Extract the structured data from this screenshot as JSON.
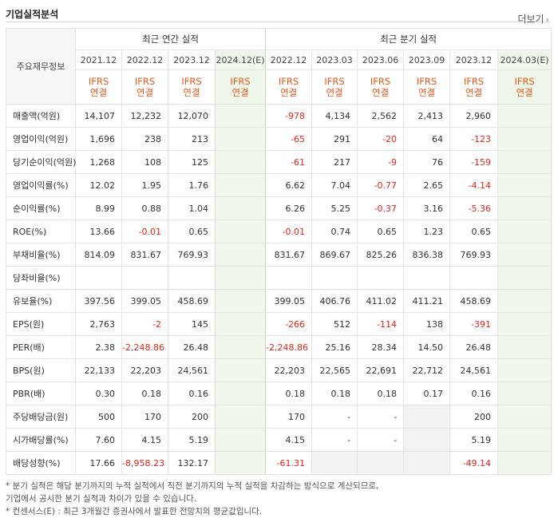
{
  "header": {
    "title": "기업실적분석",
    "more_label": "더보기"
  },
  "table": {
    "label_header": "주요재무정보",
    "annual_header": "최근 연간 실적",
    "quarter_header": "최근 분기 실적",
    "annual_dates": [
      "2021.12",
      "2022.12",
      "2023.12",
      "2024.12(E)"
    ],
    "quarter_dates": [
      "2022.12",
      "2023.03",
      "2023.06",
      "2023.09",
      "2023.12",
      "2024.03(E)"
    ],
    "ifrs_line1": "IFRS",
    "ifrs_line2": "연결",
    "rows": [
      {
        "label": "매출액(억원)",
        "values": [
          "14,107",
          "12,232",
          "12,070",
          "",
          "-978",
          "4,134",
          "2,562",
          "2,413",
          "2,960",
          ""
        ]
      },
      {
        "label": "영업이익(억원)",
        "values": [
          "1,696",
          "238",
          "213",
          "",
          "-65",
          "291",
          "-20",
          "64",
          "-123",
          ""
        ]
      },
      {
        "label": "당기순이익(억원)",
        "values": [
          "1,268",
          "108",
          "125",
          "",
          "-61",
          "217",
          "-9",
          "76",
          "-159",
          ""
        ]
      },
      {
        "label": "영업이익률(%)",
        "values": [
          "12.02",
          "1.95",
          "1.76",
          "",
          "6.62",
          "7.04",
          "-0.77",
          "2.65",
          "-4.14",
          ""
        ]
      },
      {
        "label": "순이익률(%)",
        "values": [
          "8.99",
          "0.88",
          "1.04",
          "",
          "6.26",
          "5.25",
          "-0.37",
          "3.16",
          "-5.36",
          ""
        ]
      },
      {
        "label": "ROE(%)",
        "values": [
          "13.66",
          "-0.01",
          "0.65",
          "",
          "-0.01",
          "0.74",
          "0.65",
          "1.23",
          "0.65",
          ""
        ]
      },
      {
        "label": "부채비율(%)",
        "values": [
          "814.09",
          "831.67",
          "769.93",
          "",
          "831.67",
          "869.67",
          "825.26",
          "836.38",
          "769.93",
          ""
        ]
      },
      {
        "label": "당좌비율(%)",
        "values": [
          "",
          "",
          "",
          "",
          "",
          "",
          "",
          "",
          "",
          ""
        ]
      },
      {
        "label": "유보율(%)",
        "values": [
          "397.56",
          "399.05",
          "458.69",
          "",
          "399.05",
          "406.76",
          "411.02",
          "411.21",
          "458.69",
          ""
        ]
      },
      {
        "label": "EPS(원)",
        "values": [
          "2,763",
          "-2",
          "145",
          "",
          "-266",
          "512",
          "-114",
          "138",
          "-391",
          ""
        ]
      },
      {
        "label": "PER(배)",
        "values": [
          "2.38",
          "-2,248.86",
          "26.48",
          "",
          "-2,248.86",
          "25.16",
          "28.34",
          "14.50",
          "26.48",
          ""
        ]
      },
      {
        "label": "BPS(원)",
        "values": [
          "22,133",
          "22,203",
          "24,561",
          "",
          "22,203",
          "22,565",
          "22,691",
          "22,712",
          "24,561",
          ""
        ]
      },
      {
        "label": "PBR(배)",
        "values": [
          "0.30",
          "0.18",
          "0.16",
          "",
          "0.18",
          "0.18",
          "0.18",
          "0.17",
          "0.16",
          ""
        ]
      },
      {
        "label": "주당배당금(원)",
        "values": [
          "500",
          "170",
          "200",
          "",
          "170",
          "-",
          "-",
          "",
          "200",
          ""
        ]
      },
      {
        "label": "시가배당률(%)",
        "values": [
          "7.60",
          "4.15",
          "5.19",
          "",
          "4.15",
          "-",
          "-",
          "",
          "5.19",
          ""
        ]
      },
      {
        "label": "배당성향(%)",
        "values": [
          "17.66",
          "-8,958.23",
          "132.17",
          "",
          "-61.31",
          "",
          "",
          "",
          "-49.14",
          ""
        ]
      }
    ]
  },
  "notes": [
    "* 분기 실적은 해당 분기까지의 누적 실적에서 직전 분기까지의 누적 실적을 차감하는 방식으로 계산되므로,",
    "  기업에서 공시한 분기 실적과 차이가 있을 수 있습니다.",
    "* 컨센서스(E) : 최근 3개월간 증권사에서 발표한 전망치의 평균값입니다."
  ],
  "colors": {
    "ifrs": "#e8591a",
    "negative": "#e3261d",
    "estimate_bg": "#eef7ea"
  }
}
